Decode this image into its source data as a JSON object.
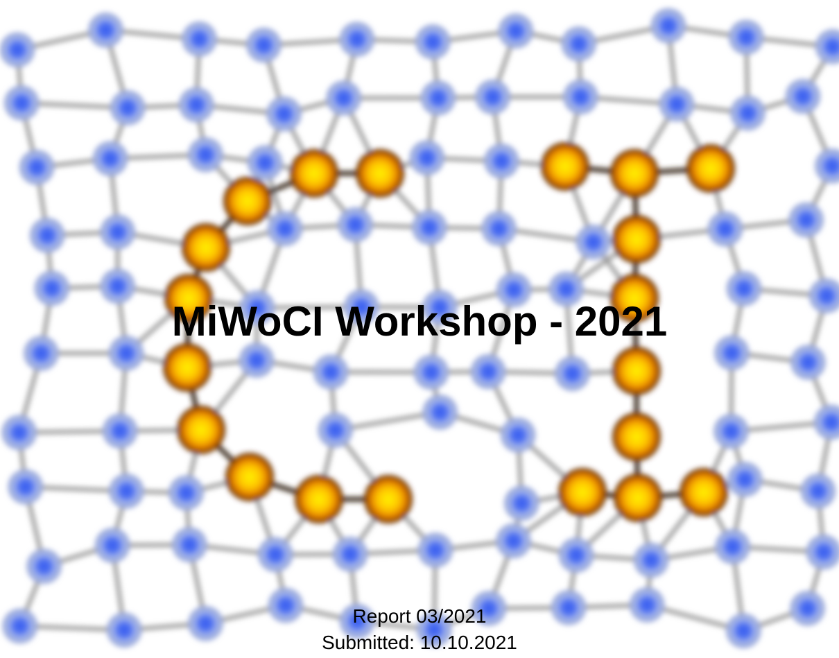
{
  "title": "MiWoCI Workshop - 2021",
  "report": "Report 03/2021",
  "submitted": "Submitted: 10.10.2021"
}
